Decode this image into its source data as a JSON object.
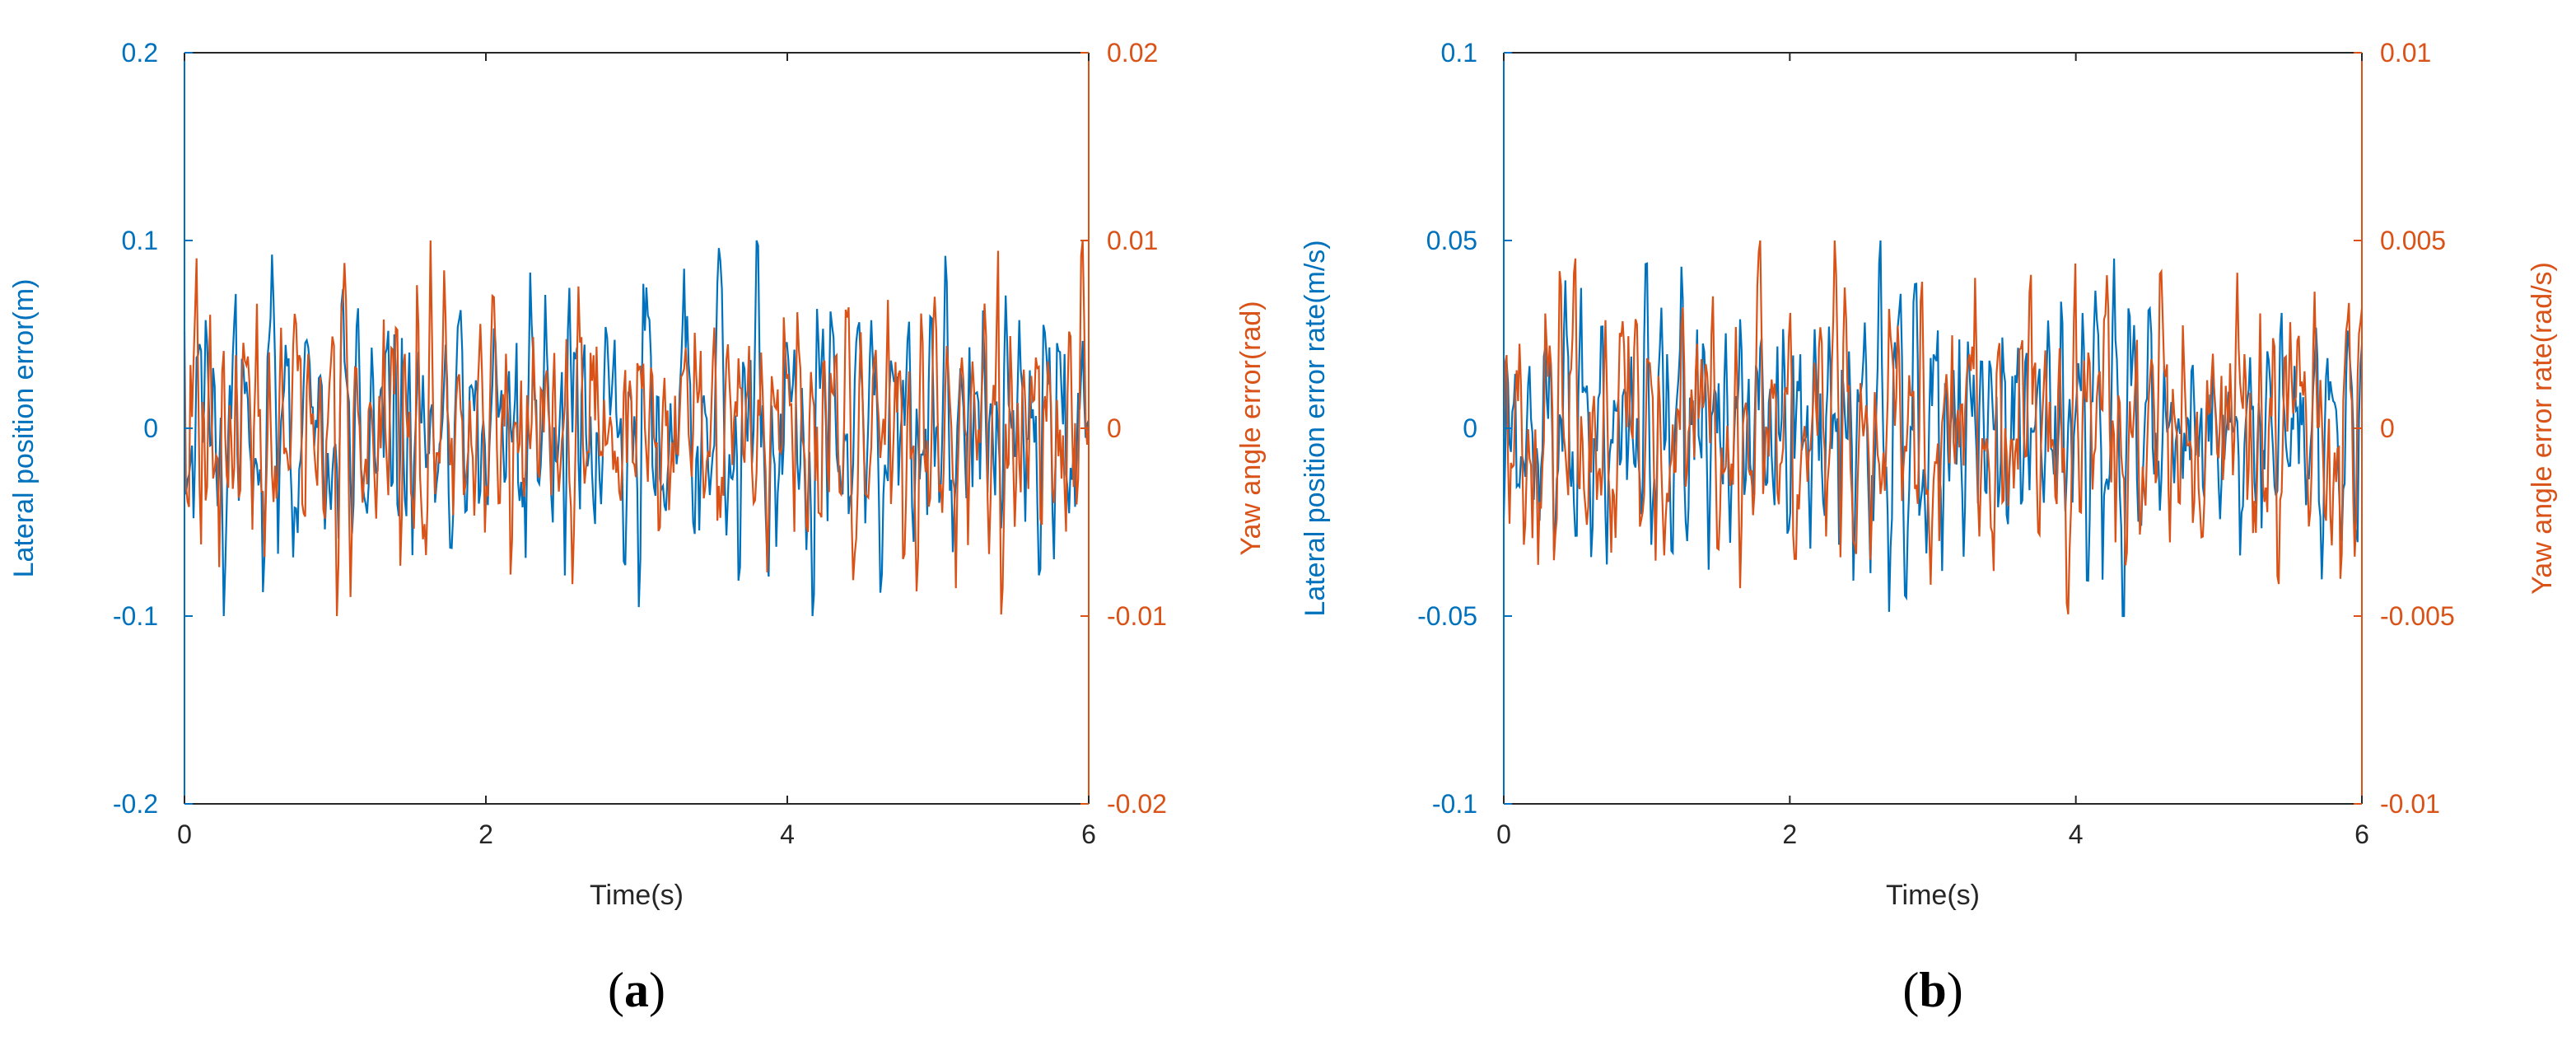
{
  "colors": {
    "left": "#0072BD",
    "right": "#D95319",
    "axis": "#262626",
    "text": "#262626"
  },
  "chart_data": [
    {
      "type": "line",
      "panel_label_open": "(",
      "panel_label_letter": "a",
      "panel_label_close": ")",
      "xlabel": "Time(s)",
      "ylabel_left": "Lateral position error(m)",
      "ylabel_right": "Yaw angle error(rad)",
      "xlim": [
        0,
        6
      ],
      "ylim_left": [
        -0.2,
        0.2
      ],
      "ylim_right": [
        -0.02,
        0.02
      ],
      "xticks": [
        "0",
        "2",
        "4",
        "6"
      ],
      "yticks_left": [
        "-0.2",
        "-0.1",
        "0",
        "0.1",
        "0.2"
      ],
      "yticks_right": [
        "-0.02",
        "-0.01",
        "0",
        "0.01",
        "0.02"
      ],
      "grid": false,
      "series": [
        {
          "axis": "left",
          "color": "#0072BD",
          "n": 600,
          "amplitude": 0.1,
          "seed": 11
        },
        {
          "axis": "right",
          "color": "#D95319",
          "n": 600,
          "amplitude": 0.01,
          "seed": 37
        }
      ]
    },
    {
      "type": "line",
      "panel_label_open": "(",
      "panel_label_letter": "b",
      "panel_label_close": ")",
      "xlabel": "Time(s)",
      "ylabel_left": "Lateral position error rate(m/s)",
      "ylabel_right": "Yaw angle error rate(rad/s)",
      "xlim": [
        0,
        6
      ],
      "ylim_left": [
        -0.1,
        0.1
      ],
      "ylim_right": [
        -0.01,
        0.01
      ],
      "xticks": [
        "0",
        "2",
        "4",
        "6"
      ],
      "yticks_left": [
        "-0.1",
        "-0.05",
        "0",
        "0.05",
        "0.1"
      ],
      "yticks_right": [
        "-0.01",
        "-0.005",
        "0",
        "0.005",
        "0.01"
      ],
      "grid": false,
      "series": [
        {
          "axis": "left",
          "color": "#0072BD",
          "n": 600,
          "amplitude": 0.05,
          "seed": 53
        },
        {
          "axis": "right",
          "color": "#D95319",
          "n": 600,
          "amplitude": 0.005,
          "seed": 79
        }
      ]
    }
  ]
}
